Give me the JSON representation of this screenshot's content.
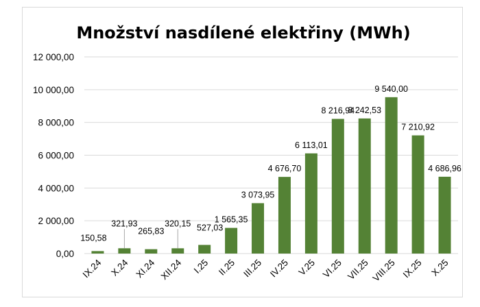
{
  "chart_data": {
    "type": "bar",
    "title": "Množství nasdílené elektřiny (MWh)",
    "xlabel": "",
    "ylabel": "",
    "categories": [
      "IX.24",
      "X.24",
      "XI.24",
      "XII.24",
      "I.25",
      "II.25",
      "III.25",
      "IV.25",
      "V.25",
      "VI.25",
      "VII.25",
      "VIII.25",
      "IX.25",
      "X.25"
    ],
    "values": [
      150.58,
      321.93,
      265.83,
      320.15,
      527.03,
      1565.35,
      3073.95,
      4676.7,
      6113.01,
      8216.94,
      8242.53,
      9540.0,
      7210.92,
      4686.96
    ],
    "data_labels": [
      "150,58",
      "321,93",
      "265,83",
      "320,15",
      "527,03",
      "1 565,35",
      "3 073,95",
      "4 676,70",
      "6 113,01",
      "8 216,94",
      "8 242,53",
      "9 540,00",
      "7 210,92",
      "4 686,96"
    ],
    "ylim": [
      0,
      12000
    ],
    "y_ticks": [
      "0,00",
      "2 000,00",
      "4 000,00",
      "6 000,00",
      "8 000,00",
      "10 000,00",
      "12 000,00"
    ],
    "grid": true,
    "legend": "none",
    "bar_color": "#548235",
    "grid_color": "#d9d9d9"
  }
}
